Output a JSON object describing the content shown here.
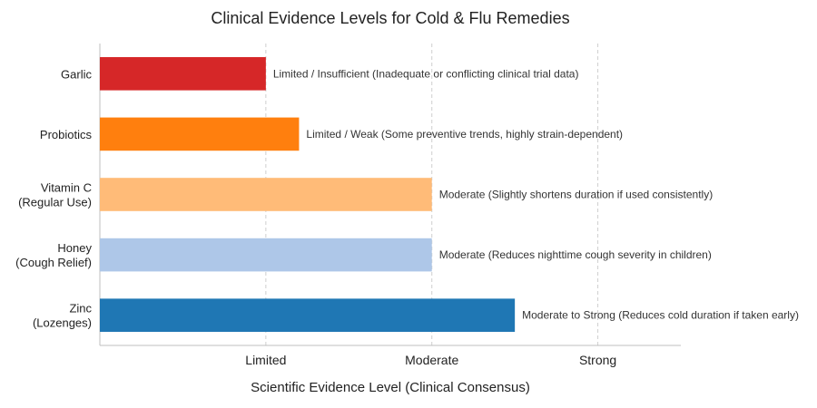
{
  "chart_data": {
    "type": "bar",
    "orientation": "horizontal",
    "title": "Clinical Evidence Levels for Cold & Flu Remedies",
    "xlabel": "Scientific Evidence Level (Clinical Consensus)",
    "ylabel": "",
    "xlim": [
      0,
      3.5
    ],
    "ticks": [
      {
        "value": 1,
        "label": "Limited"
      },
      {
        "value": 2,
        "label": "Moderate"
      },
      {
        "value": 3,
        "label": "Strong"
      }
    ],
    "grid": "x-dashed",
    "categories": [
      {
        "lines": [
          "Garlic"
        ]
      },
      {
        "lines": [
          "Probiotics"
        ]
      },
      {
        "lines": [
          "Vitamin C",
          "(Regular Use)"
        ]
      },
      {
        "lines": [
          "Honey",
          "(Cough Relief)"
        ]
      },
      {
        "lines": [
          "Zinc",
          "(Lozenges)"
        ]
      }
    ],
    "values": [
      1.0,
      1.2,
      2.0,
      2.0,
      2.5
    ],
    "colors": [
      "#d62728",
      "#ff7f0e",
      "#ffbb78",
      "#aec7e8",
      "#1f77b4"
    ],
    "data_labels": [
      "Limited / Insufficient (Inadequate or conflicting clinical trial data)",
      "Limited / Weak (Some preventive trends, highly strain-dependent)",
      "Moderate (Slightly shortens duration if used consistently)",
      "Moderate (Reduces nighttime cough severity in children)",
      "Moderate to Strong (Reduces cold duration if taken early)"
    ]
  }
}
